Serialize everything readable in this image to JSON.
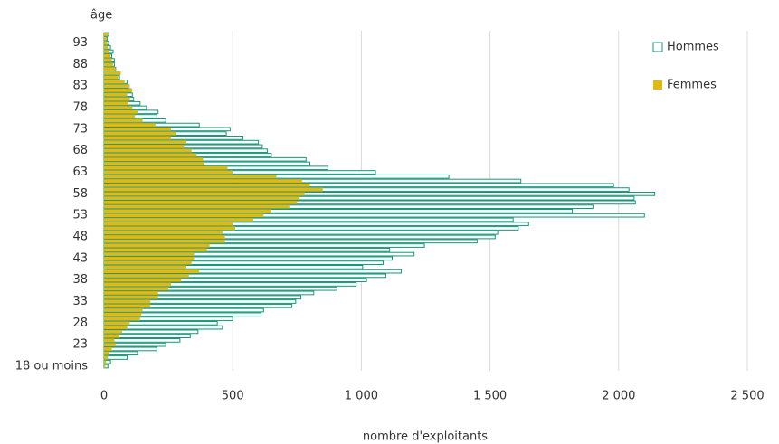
{
  "chart_data": {
    "type": "hbar-overlap",
    "y_label": "âge",
    "x_label": "nombre d'exploitants",
    "categories": [
      "18 ou moins",
      null,
      null,
      null,
      null,
      "23",
      null,
      null,
      null,
      null,
      "28",
      null,
      null,
      null,
      null,
      "33",
      null,
      null,
      null,
      null,
      "38",
      null,
      null,
      null,
      null,
      "43",
      null,
      null,
      null,
      null,
      "48",
      null,
      null,
      null,
      null,
      "53",
      null,
      null,
      null,
      null,
      "58",
      null,
      null,
      null,
      null,
      "63",
      null,
      null,
      null,
      null,
      "68",
      null,
      null,
      null,
      null,
      "73",
      null,
      null,
      null,
      null,
      "78",
      null,
      null,
      null,
      null,
      "83",
      null,
      null,
      null,
      null,
      "88",
      null,
      null,
      null,
      null,
      "93",
      null,
      null
    ],
    "series": [
      {
        "name": "Hommes",
        "color": "#14967a",
        "style": "outline",
        "values": [
          15,
          25,
          90,
          130,
          205,
          240,
          295,
          335,
          365,
          460,
          440,
          500,
          610,
          620,
          730,
          745,
          765,
          815,
          905,
          980,
          1020,
          1095,
          1155,
          1005,
          1085,
          1120,
          1205,
          1110,
          1245,
          1450,
          1520,
          1530,
          1610,
          1650,
          1590,
          2100,
          1820,
          1900,
          2065,
          2060,
          2140,
          2040,
          1980,
          1620,
          1340,
          1055,
          870,
          800,
          785,
          650,
          635,
          615,
          600,
          540,
          475,
          490,
          370,
          240,
          205,
          210,
          165,
          140,
          115,
          110,
          105,
          95,
          90,
          60,
          60,
          45,
          40,
          40,
          30,
          35,
          25,
          18,
          12,
          18
        ]
      },
      {
        "name": "Femmes",
        "color": "#e2b811",
        "style": "filled",
        "values": [
          5,
          8,
          15,
          20,
          30,
          45,
          40,
          60,
          70,
          90,
          100,
          140,
          145,
          150,
          180,
          180,
          210,
          210,
          250,
          260,
          300,
          330,
          370,
          320,
          340,
          350,
          350,
          400,
          410,
          470,
          470,
          460,
          510,
          500,
          580,
          620,
          650,
          720,
          750,
          760,
          780,
          850,
          800,
          770,
          670,
          500,
          480,
          390,
          385,
          360,
          340,
          310,
          320,
          260,
          280,
          260,
          200,
          150,
          120,
          130,
          110,
          95,
          100,
          90,
          110,
          100,
          80,
          55,
          65,
          45,
          35,
          30,
          25,
          20,
          15,
          12,
          10,
          15
        ]
      }
    ],
    "xlim": [
      0,
      2500
    ],
    "xticks": [
      0,
      500,
      {
        "value": 1000,
        "label": "1 000"
      },
      {
        "value": 1500,
        "label": "1 500"
      },
      {
        "value": 2000,
        "label": "2 000"
      },
      {
        "value": 2500,
        "label": "2 500"
      }
    ],
    "grid": true,
    "legend": "top-right"
  }
}
